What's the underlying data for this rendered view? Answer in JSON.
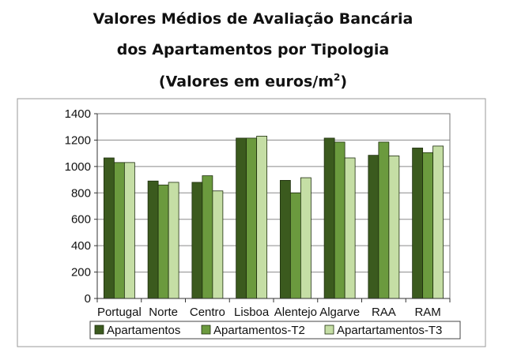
{
  "chart_data": {
    "type": "bar",
    "title_line1": "Valores Médios de Avaliação Bancária",
    "title_line2": "dos Apartamentos por Tipologia",
    "title_line3_prefix": "(Valores em euros/m",
    "title_line3_sup": "2",
    "title_line3_suffix": ")",
    "categories": [
      "Portugal",
      "Norte",
      "Centro",
      "Lisboa",
      "Alentejo",
      "Algarve",
      "RAA",
      "RAM"
    ],
    "series": [
      {
        "name": "Apartamentos",
        "color": "#3b5a1e",
        "values": [
          1065,
          890,
          880,
          1215,
          895,
          1215,
          1085,
          1140
        ]
      },
      {
        "name": "Apartamentos-T2",
        "color": "#6b9a3e",
        "values": [
          1030,
          860,
          930,
          1215,
          800,
          1185,
          1185,
          1105
        ]
      },
      {
        "name": "Apartartamentos-T3",
        "color": "#c5dea5",
        "values": [
          1030,
          880,
          815,
          1230,
          915,
          1065,
          1080,
          1155
        ]
      }
    ],
    "ylim": [
      0,
      1400
    ],
    "yticks": [
      "0",
      "200",
      "400",
      "600",
      "800",
      "1000",
      "1200",
      "1400"
    ],
    "grid": true,
    "legend_position": "bottom"
  }
}
